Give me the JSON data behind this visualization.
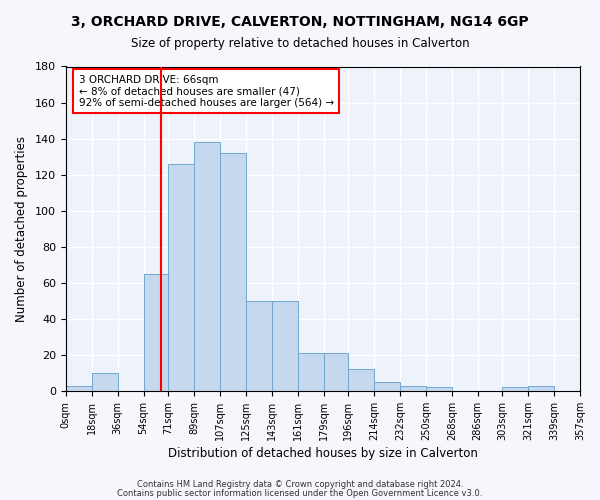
{
  "title": "3, ORCHARD DRIVE, CALVERTON, NOTTINGHAM, NG14 6GP",
  "subtitle": "Size of property relative to detached houses in Calverton",
  "xlabel": "Distribution of detached houses by size in Calverton",
  "ylabel": "Number of detached properties",
  "bar_color": "#c5d8ed",
  "bar_edge_color": "#6fa8d0",
  "background_color": "#eef2fb",
  "fig_background_color": "#f5f7fd",
  "grid_color": "#ffffff",
  "red_line_x": 66,
  "bin_edges": [
    0,
    18,
    36,
    54,
    71,
    89,
    107,
    125,
    143,
    161,
    179,
    196,
    214,
    232,
    250,
    268,
    286,
    303,
    321,
    339,
    357
  ],
  "bin_labels": [
    "0sqm",
    "18sqm",
    "36sqm",
    "54sqm",
    "71sqm",
    "89sqm",
    "107sqm",
    "125sqm",
    "143sqm",
    "161sqm",
    "179sqm",
    "196sqm",
    "214sqm",
    "232sqm",
    "250sqm",
    "268sqm",
    "286sqm",
    "303sqm",
    "321sqm",
    "339sqm",
    "357sqm"
  ],
  "bar_heights": [
    3,
    10,
    0,
    65,
    126,
    138,
    132,
    50,
    50,
    21,
    21,
    12,
    5,
    3,
    2,
    0,
    0,
    2,
    3,
    0
  ],
  "ylim": [
    0,
    180
  ],
  "yticks": [
    0,
    20,
    40,
    60,
    80,
    100,
    120,
    140,
    160,
    180
  ],
  "annotation_title": "3 ORCHARD DRIVE: 66sqm",
  "annotation_line1": "← 8% of detached houses are smaller (47)",
  "annotation_line2": "92% of semi-detached houses are larger (564) →",
  "footer1": "Contains HM Land Registry data © Crown copyright and database right 2024.",
  "footer2": "Contains public sector information licensed under the Open Government Licence v3.0."
}
